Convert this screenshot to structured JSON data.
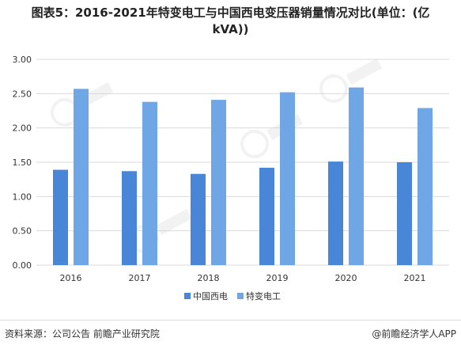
{
  "title_line1": "图表5：2016-2021年特变电工与中国西电变压器销量情况对比(单位：(亿",
  "title_line2": "kVA))",
  "source_text": "资料来源：公司公告 前瞻产业研究院",
  "brand_text": "@前瞻经济学人APP",
  "colors": {
    "series1": "#4a86d8",
    "series2": "#6fa6e6",
    "grid": "#d9d9d9",
    "axis_text": "#333333"
  },
  "chart_data": {
    "type": "bar",
    "title": "图表5：2016-2021年特变电工与中国西电变压器销量情况对比(单位：(亿kVA))",
    "categories": [
      "2016",
      "2017",
      "2018",
      "2019",
      "2020",
      "2021"
    ],
    "series": [
      {
        "name": "中国西电",
        "values": [
          1.39,
          1.37,
          1.33,
          1.42,
          1.51,
          1.5
        ]
      },
      {
        "name": "特变电工",
        "values": [
          2.57,
          2.38,
          2.41,
          2.52,
          2.59,
          2.29
        ]
      }
    ],
    "yticks": [
      "0.00",
      "0.50",
      "1.00",
      "1.50",
      "2.00",
      "2.50",
      "3.00"
    ],
    "ylim": [
      0,
      3
    ],
    "xlabel": "",
    "ylabel": "",
    "grid": true,
    "legend_position": "bottom"
  }
}
